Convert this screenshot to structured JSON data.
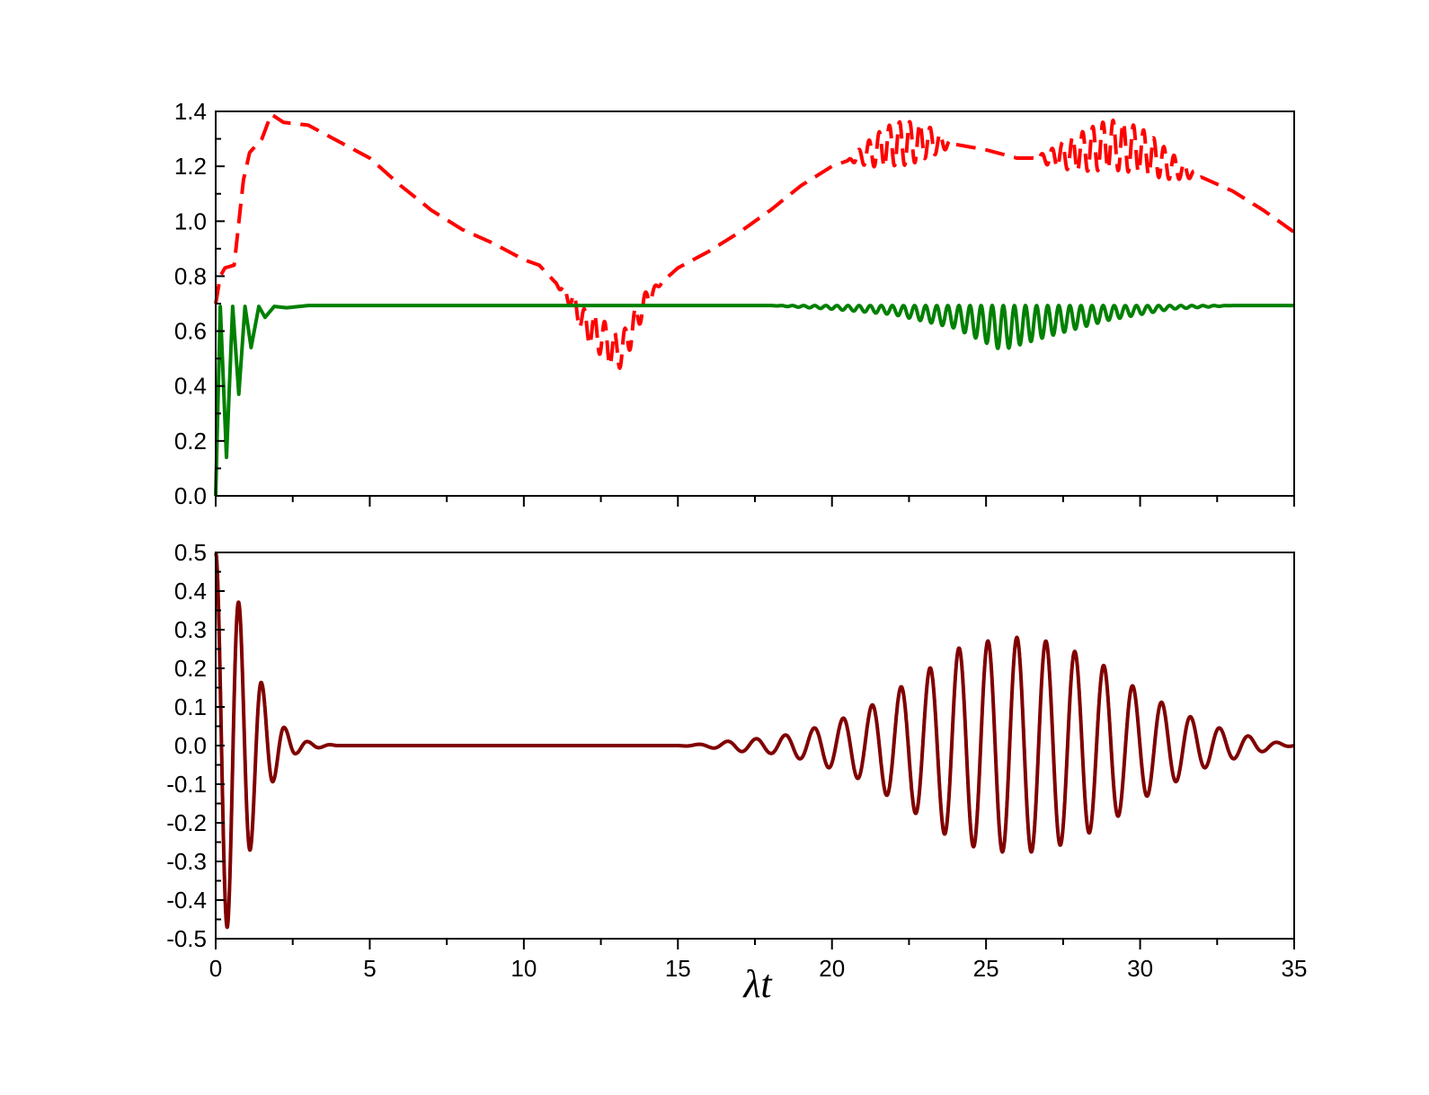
{
  "chart_data": [
    {
      "type": "line",
      "panel": "top",
      "title": "",
      "xlabel": "",
      "ylabel": "",
      "xlim": [
        0,
        35
      ],
      "ylim": [
        0.0,
        1.4
      ],
      "grid": false,
      "x_ticks": [
        "0",
        "5",
        "10",
        "15",
        "20",
        "25",
        "30",
        "35"
      ],
      "x_tick_labels_shown": false,
      "y_ticks": [
        "0.0",
        "0.2",
        "0.4",
        "0.6",
        "0.8",
        "1.0",
        "1.2",
        "1.4"
      ],
      "series": [
        {
          "color": "#ff0000",
          "style": "dashed",
          "points": [
            [
              0.0,
              0.7
            ],
            [
              0.15,
              0.8
            ],
            [
              0.3,
              0.83
            ],
            [
              0.6,
              0.84
            ],
            [
              0.9,
              1.15
            ],
            [
              1.1,
              1.25
            ],
            [
              1.5,
              1.3
            ],
            [
              1.8,
              1.39
            ],
            [
              2.2,
              1.36
            ],
            [
              3.0,
              1.35
            ],
            [
              4.0,
              1.29
            ],
            [
              5.0,
              1.23
            ],
            [
              6.0,
              1.13
            ],
            [
              7.0,
              1.04
            ],
            [
              8.0,
              0.97
            ],
            [
              9.0,
              0.92
            ],
            [
              10.0,
              0.86
            ],
            [
              10.5,
              0.84
            ],
            [
              11.0,
              0.78
            ],
            [
              11.5,
              0.72
            ],
            [
              12.0,
              0.62
            ],
            [
              12.5,
              0.58
            ],
            [
              13.0,
              0.52
            ],
            [
              13.3,
              0.55
            ],
            [
              13.6,
              0.63
            ],
            [
              14.0,
              0.72
            ],
            [
              14.5,
              0.78
            ],
            [
              15.0,
              0.83
            ],
            [
              16.0,
              0.89
            ],
            [
              17.0,
              0.96
            ],
            [
              18.0,
              1.04
            ],
            [
              19.0,
              1.13
            ],
            [
              20.0,
              1.2
            ],
            [
              21.0,
              1.24
            ],
            [
              22.0,
              1.28
            ],
            [
              23.0,
              1.29
            ],
            [
              24.0,
              1.28
            ],
            [
              25.0,
              1.26
            ],
            [
              26.0,
              1.23
            ],
            [
              27.0,
              1.23
            ],
            [
              28.0,
              1.25
            ],
            [
              29.0,
              1.28
            ],
            [
              30.0,
              1.26
            ],
            [
              31.0,
              1.2
            ],
            [
              32.0,
              1.16
            ],
            [
              33.0,
              1.11
            ],
            [
              34.0,
              1.04
            ],
            [
              35.0,
              0.96
            ]
          ]
        },
        {
          "color": "#008000",
          "style": "solid",
          "baseline": 0.693,
          "points": [
            [
              0.0,
              0.0
            ],
            [
              0.15,
              0.69
            ],
            [
              0.35,
              0.14
            ],
            [
              0.55,
              0.69
            ],
            [
              0.75,
              0.37
            ],
            [
              0.95,
              0.69
            ],
            [
              1.15,
              0.54
            ],
            [
              1.4,
              0.69
            ],
            [
              1.6,
              0.65
            ],
            [
              1.9,
              0.69
            ],
            [
              2.3,
              0.685
            ],
            [
              3.0,
              0.693
            ],
            [
              18.0,
              0.693
            ],
            [
              20.0,
              0.68
            ],
            [
              22.0,
              0.66
            ],
            [
              24.0,
              0.61
            ],
            [
              25.5,
              0.53
            ],
            [
              27.0,
              0.58
            ],
            [
              29.0,
              0.64
            ],
            [
              31.0,
              0.68
            ],
            [
              33.0,
              0.693
            ],
            [
              35.0,
              0.693
            ]
          ]
        }
      ]
    },
    {
      "type": "line",
      "panel": "bottom",
      "title": "",
      "xlabel": "λt",
      "ylabel": "",
      "xlim": [
        0,
        35
      ],
      "ylim": [
        -0.5,
        0.5
      ],
      "grid": false,
      "x_ticks": [
        "0",
        "5",
        "10",
        "15",
        "20",
        "25",
        "30",
        "35"
      ],
      "y_ticks": [
        "0.5",
        "0.4",
        "0.3",
        "0.2",
        "0.1",
        "0.0",
        "-0.1",
        "-0.2",
        "-0.3",
        "-0.4",
        "-0.5"
      ],
      "series": [
        {
          "color": "#800000",
          "style": "solid",
          "points": [
            [
              0.0,
              0.5
            ],
            [
              0.38,
              -0.47
            ],
            [
              0.75,
              0.37
            ],
            [
              1.12,
              -0.27
            ],
            [
              1.5,
              0.16
            ],
            [
              1.88,
              -0.09
            ],
            [
              2.25,
              0.045
            ],
            [
              2.62,
              -0.02
            ],
            [
              3.0,
              0.01
            ],
            [
              3.4,
              -0.005
            ],
            [
              4.0,
              0.0
            ],
            [
              15.0,
              0.0
            ],
            [
              16.0,
              0.005
            ],
            [
              17.0,
              -0.015
            ],
            [
              18.0,
              0.02
            ],
            [
              19.0,
              0.035
            ],
            [
              20.0,
              0.06
            ],
            [
              21.0,
              -0.09
            ],
            [
              22.0,
              0.14
            ],
            [
              23.0,
              -0.19
            ],
            [
              24.0,
              0.25
            ],
            [
              25.0,
              -0.27
            ],
            [
              26.0,
              0.28
            ],
            [
              27.0,
              -0.27
            ],
            [
              28.0,
              0.24
            ],
            [
              29.0,
              -0.2
            ],
            [
              30.0,
              0.14
            ],
            [
              31.0,
              -0.1
            ],
            [
              32.0,
              0.06
            ],
            [
              33.0,
              -0.035
            ],
            [
              34.0,
              0.015
            ],
            [
              35.0,
              0.0
            ]
          ]
        }
      ]
    }
  ]
}
